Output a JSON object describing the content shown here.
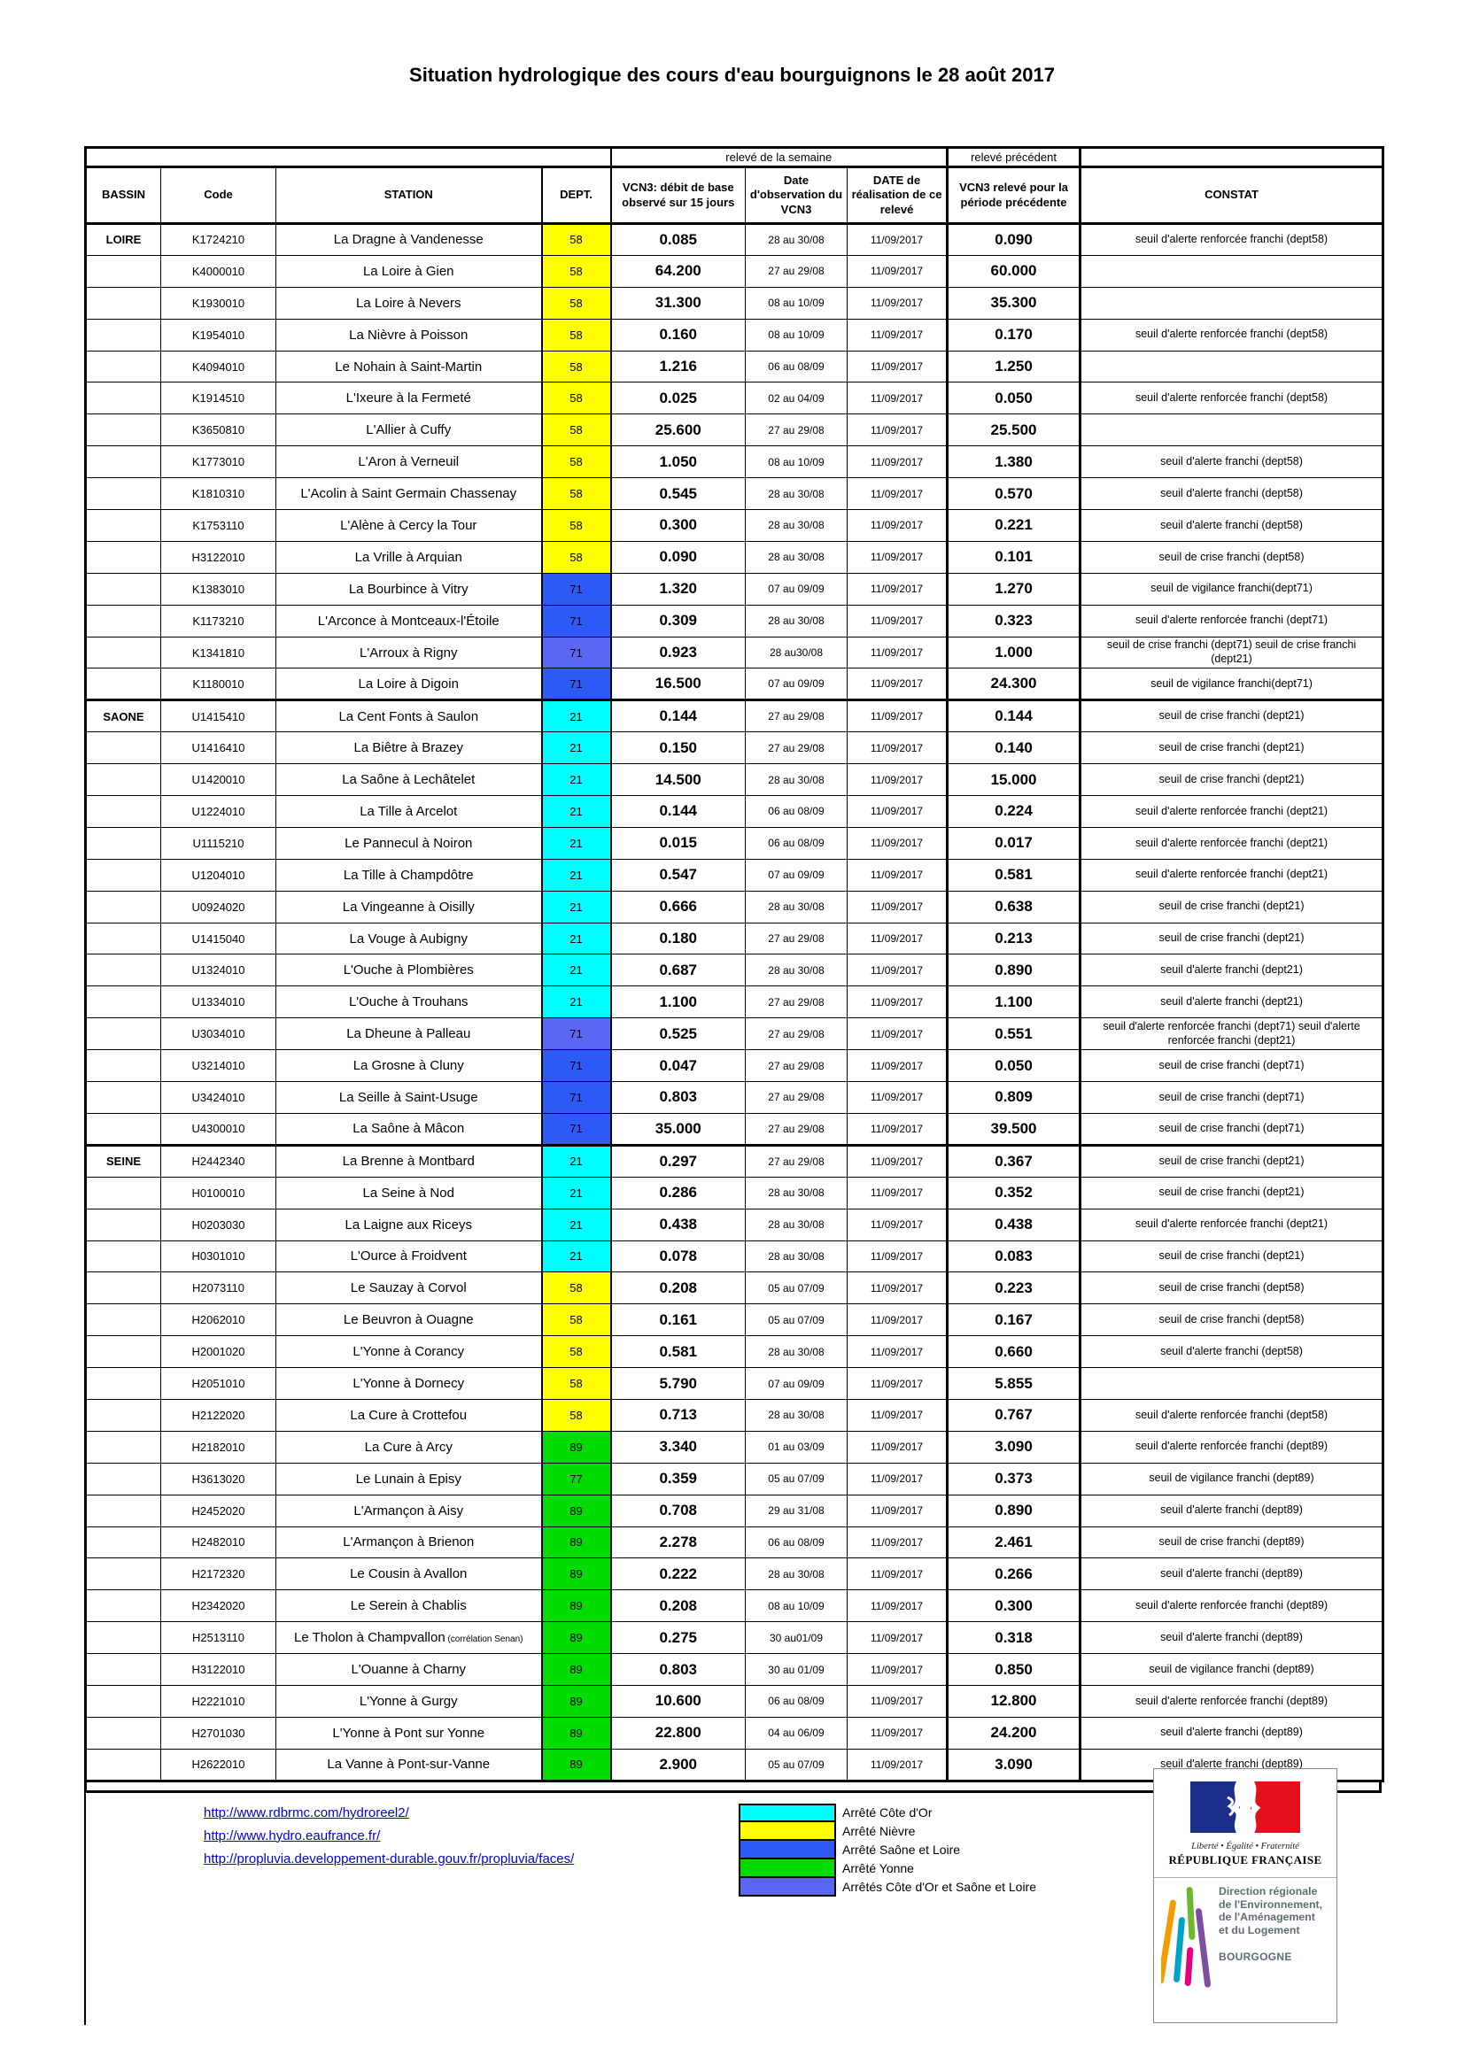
{
  "title": "Situation hydrologique des cours d'eau bourguignons le 28 août 2017",
  "table": {
    "group_week": "relevé de la semaine",
    "group_prev": "relevé précédent",
    "columns": [
      "BASSIN",
      "Code",
      "STATION",
      "DEPT.",
      "VCN3: débit de base observé sur 15 jours",
      "Date d'observation du VCN3",
      "DATE de réalisation de ce relevé",
      "VCN3 relevé pour la période précédente",
      "CONSTAT"
    ],
    "dept_colors": {
      "nievre": "#FFFF00",
      "cote_dor": "#00FFFF",
      "saone_et_loire": "#2E5BF7",
      "cote_dor_et_saone_et_loire": "#5A67F2",
      "yonne": "#00DC00"
    },
    "rows": [
      {
        "bassin": "LOIRE",
        "code": "K1724210",
        "station": "La Dragne à Vandenesse",
        "dept": "58",
        "color": "#FFFF00",
        "vcn3": "0.085",
        "obs": "28 au 30/08",
        "real": "11/09/2017",
        "prev": "0.090",
        "constat": "seuil d'alerte renforcée franchi (dept58)"
      },
      {
        "bassin": "",
        "code": "K4000010",
        "station": "La Loire à Gien",
        "dept": "58",
        "color": "#FFFF00",
        "vcn3": "64.200",
        "obs": "27 au 29/08",
        "real": "11/09/2017",
        "prev": "60.000",
        "constat": ""
      },
      {
        "bassin": "",
        "code": "K1930010",
        "station": "La Loire à Nevers",
        "dept": "58",
        "color": "#FFFF00",
        "vcn3": "31.300",
        "obs": "08 au 10/09",
        "real": "11/09/2017",
        "prev": "35.300",
        "constat": ""
      },
      {
        "bassin": "",
        "code": "K1954010",
        "station": "La Nièvre à Poisson",
        "dept": "58",
        "color": "#FFFF00",
        "vcn3": "0.160",
        "obs": "08 au 10/09",
        "real": "11/09/2017",
        "prev": "0.170",
        "constat": "seuil d'alerte renforcée franchi (dept58)"
      },
      {
        "bassin": "",
        "code": "K4094010",
        "station": "Le Nohain à Saint-Martin",
        "dept": "58",
        "color": "#FFFF00",
        "vcn3": "1.216",
        "obs": "06 au 08/09",
        "real": "11/09/2017",
        "prev": "1.250",
        "constat": ""
      },
      {
        "bassin": "",
        "code": "K1914510",
        "station": "L'Ixeure à la Fermeté",
        "dept": "58",
        "color": "#FFFF00",
        "vcn3": "0.025",
        "obs": "02 au 04/09",
        "real": "11/09/2017",
        "prev": "0.050",
        "constat": "seuil d'alerte renforcée franchi (dept58)"
      },
      {
        "bassin": "",
        "code": "K3650810",
        "station": "L'Allier à Cuffy",
        "dept": "58",
        "color": "#FFFF00",
        "vcn3": "25.600",
        "obs": "27 au 29/08",
        "real": "11/09/2017",
        "prev": "25.500",
        "constat": ""
      },
      {
        "bassin": "",
        "code": "K1773010",
        "station": "L'Aron à Verneuil",
        "dept": "58",
        "color": "#FFFF00",
        "vcn3": "1.050",
        "obs": "08 au 10/09",
        "real": "11/09/2017",
        "prev": "1.380",
        "constat": "seuil d'alerte franchi (dept58)"
      },
      {
        "bassin": "",
        "code": "K1810310",
        "station": "L'Acolin à Saint Germain Chassenay",
        "dept": "58",
        "color": "#FFFF00",
        "vcn3": "0.545",
        "obs": "28 au 30/08",
        "real": "11/09/2017",
        "prev": "0.570",
        "constat": "seuil d'alerte franchi (dept58)"
      },
      {
        "bassin": "",
        "code": "K1753110",
        "station": "L'Alène à Cercy la Tour",
        "dept": "58",
        "color": "#FFFF00",
        "vcn3": "0.300",
        "obs": "28 au 30/08",
        "real": "11/09/2017",
        "prev": "0.221",
        "constat": "seuil d'alerte franchi (dept58)"
      },
      {
        "bassin": "",
        "code": "H3122010",
        "station": "La Vrille à Arquian",
        "dept": "58",
        "color": "#FFFF00",
        "vcn3": "0.090",
        "obs": "28 au 30/08",
        "real": "11/09/2017",
        "prev": "0.101",
        "constat": "seuil de crise franchi (dept58)"
      },
      {
        "bassin": "",
        "code": "K1383010",
        "station": "La Bourbince à Vitry",
        "dept": "71",
        "color": "#2E5BF7",
        "vcn3": "1.320",
        "obs": "07 au 09/09",
        "real": "11/09/2017",
        "prev": "1.270",
        "constat": "seuil de vigilance franchi(dept71)"
      },
      {
        "bassin": "",
        "code": "K1173210",
        "station": "L'Arconce à Montceaux-l'Étoile",
        "dept": "71",
        "color": "#2E5BF7",
        "vcn3": "0.309",
        "obs": "28 au 30/08",
        "real": "11/09/2017",
        "prev": "0.323",
        "constat": "seuil d'alerte renforcée franchi (dept71)"
      },
      {
        "bassin": "",
        "code": "K1341810",
        "station": "L'Arroux à Rigny",
        "dept": "71",
        "color": "#5A67F2",
        "vcn3": "0.923",
        "obs": "28 au30/08",
        "real": "11/09/2017",
        "prev": "1.000",
        "constat": "seuil de crise franchi (dept71)  seuil de crise franchi (dept21)"
      },
      {
        "bassin": "",
        "code": "K1180010",
        "station": "La Loire à Digoin",
        "dept": "71",
        "color": "#2E5BF7",
        "vcn3": "16.500",
        "obs": "07 au 09/09",
        "real": "11/09/2017",
        "prev": "24.300",
        "constat": "seuil de vigilance franchi(dept71)"
      },
      {
        "bassin": "SAONE",
        "code": "U1415410",
        "station": "La Cent Fonts à Saulon",
        "dept": "21",
        "color": "#00FFFF",
        "vcn3": "0.144",
        "obs": "27 au 29/08",
        "real": "11/09/2017",
        "prev": "0.144",
        "constat": "seuil de crise franchi (dept21)"
      },
      {
        "bassin": "",
        "code": "U1416410",
        "station": "La Biêtre à Brazey",
        "dept": "21",
        "color": "#00FFFF",
        "vcn3": "0.150",
        "obs": "27 au 29/08",
        "real": "11/09/2017",
        "prev": "0.140",
        "constat": "seuil de crise franchi (dept21)"
      },
      {
        "bassin": "",
        "code": "U1420010",
        "station": "La Saône à Lechâtelet",
        "dept": "21",
        "color": "#00FFFF",
        "vcn3": "14.500",
        "obs": "28 au 30/08",
        "real": "11/09/2017",
        "prev": "15.000",
        "constat": "seuil de crise franchi (dept21)"
      },
      {
        "bassin": "",
        "code": "U1224010",
        "station": "La Tille à Arcelot",
        "dept": "21",
        "color": "#00FFFF",
        "vcn3": "0.144",
        "obs": "06 au 08/09",
        "real": "11/09/2017",
        "prev": "0.224",
        "constat": "seuil d'alerte renforcée franchi (dept21)"
      },
      {
        "bassin": "",
        "code": "U1115210",
        "station": "Le Pannecul à Noiron",
        "dept": "21",
        "color": "#00FFFF",
        "vcn3": "0.015",
        "obs": "06 au 08/09",
        "real": "11/09/2017",
        "prev": "0.017",
        "constat": "seuil d'alerte renforcée franchi (dept21)"
      },
      {
        "bassin": "",
        "code": "U1204010",
        "station": "La Tille à Champdôtre",
        "dept": "21",
        "color": "#00FFFF",
        "vcn3": "0.547",
        "obs": "07 au 09/09",
        "real": "11/09/2017",
        "prev": "0.581",
        "constat": "seuil d'alerte renforcée franchi (dept21)"
      },
      {
        "bassin": "",
        "code": "U0924020",
        "station": "La Vingeanne à Oisilly",
        "dept": "21",
        "color": "#00FFFF",
        "vcn3": "0.666",
        "obs": "28 au 30/08",
        "real": "11/09/2017",
        "prev": "0.638",
        "constat": "seuil de crise franchi (dept21)"
      },
      {
        "bassin": "",
        "code": "U1415040",
        "station": "La Vouge à Aubigny",
        "dept": "21",
        "color": "#00FFFF",
        "vcn3": "0.180",
        "obs": "27 au 29/08",
        "real": "11/09/2017",
        "prev": "0.213",
        "constat": "seuil de crise franchi (dept21)"
      },
      {
        "bassin": "",
        "code": "U1324010",
        "station": "L'Ouche à Plombières",
        "dept": "21",
        "color": "#00FFFF",
        "vcn3": "0.687",
        "obs": "28 au 30/08",
        "real": "11/09/2017",
        "prev": "0.890",
        "constat": "seuil d'alerte franchi (dept21)"
      },
      {
        "bassin": "",
        "code": "U1334010",
        "station": "L'Ouche à Trouhans",
        "dept": "21",
        "color": "#00FFFF",
        "vcn3": "1.100",
        "obs": "27 au 29/08",
        "real": "11/09/2017",
        "prev": "1.100",
        "constat": "seuil d'alerte franchi (dept21)"
      },
      {
        "bassin": "",
        "code": "U3034010",
        "station": "La Dheune à Palleau",
        "dept": "71",
        "color": "#5A67F2",
        "vcn3": "0.525",
        "obs": "27 au 29/08",
        "real": "11/09/2017",
        "prev": "0.551",
        "constat": "seuil d'alerte renforcée franchi (dept71)  seuil d'alerte renforcée franchi (dept21)"
      },
      {
        "bassin": "",
        "code": "U3214010",
        "station": "La Grosne à Cluny",
        "dept": "71",
        "color": "#2E5BF7",
        "vcn3": "0.047",
        "obs": "27 au 29/08",
        "real": "11/09/2017",
        "prev": "0.050",
        "constat": "seuil de crise franchi (dept71)"
      },
      {
        "bassin": "",
        "code": "U3424010",
        "station": "La Seille à Saint-Usuge",
        "dept": "71",
        "color": "#2E5BF7",
        "vcn3": "0.803",
        "obs": "27 au 29/08",
        "real": "11/09/2017",
        "prev": "0.809",
        "constat": "seuil de crise franchi (dept71)"
      },
      {
        "bassin": "",
        "code": "U4300010",
        "station": "La Saône à Mâcon",
        "dept": "71",
        "color": "#2E5BF7",
        "vcn3": "35.000",
        "obs": "27 au 29/08",
        "real": "11/09/2017",
        "prev": "39.500",
        "constat": "seuil de crise franchi (dept71)"
      },
      {
        "bassin": "SEINE",
        "code": "H2442340",
        "station": "La Brenne à Montbard",
        "dept": "21",
        "color": "#00FFFF",
        "vcn3": "0.297",
        "obs": "27 au 29/08",
        "real": "11/09/2017",
        "prev": "0.367",
        "constat": "seuil de crise franchi (dept21)"
      },
      {
        "bassin": "",
        "code": "H0100010",
        "station": "La Seine à Nod",
        "dept": "21",
        "color": "#00FFFF",
        "vcn3": "0.286",
        "obs": "28 au 30/08",
        "real": "11/09/2017",
        "prev": "0.352",
        "constat": "seuil de crise franchi (dept21)"
      },
      {
        "bassin": "",
        "code": "H0203030",
        "station": "La Laigne aux Riceys",
        "dept": "21",
        "color": "#00FFFF",
        "vcn3": "0.438",
        "obs": "28 au 30/08",
        "real": "11/09/2017",
        "prev": "0.438",
        "constat": "seuil d'alerte renforcée franchi (dept21)"
      },
      {
        "bassin": "",
        "code": "H0301010",
        "station": "L'Ource à Froidvent",
        "dept": "21",
        "color": "#00FFFF",
        "vcn3": "0.078",
        "obs": "28 au 30/08",
        "real": "11/09/2017",
        "prev": "0.083",
        "constat": "seuil de crise franchi (dept21)"
      },
      {
        "bassin": "",
        "code": "H2073110",
        "station": "Le Sauzay à Corvol",
        "dept": "58",
        "color": "#FFFF00",
        "vcn3": "0.208",
        "obs": "05 au 07/09",
        "real": "11/09/2017",
        "prev": "0.223",
        "constat": "seuil de crise franchi (dept58)"
      },
      {
        "bassin": "",
        "code": "H2062010",
        "station": "Le Beuvron à Ouagne",
        "dept": "58",
        "color": "#FFFF00",
        "vcn3": "0.161",
        "obs": "05 au 07/09",
        "real": "11/09/2017",
        "prev": "0.167",
        "constat": "seuil de crise franchi (dept58)"
      },
      {
        "bassin": "",
        "code": "H2001020",
        "station": "L'Yonne à Corancy",
        "dept": "58",
        "color": "#FFFF00",
        "vcn3": "0.581",
        "obs": "28 au 30/08",
        "real": "11/09/2017",
        "prev": "0.660",
        "constat": "seuil d'alerte franchi (dept58)"
      },
      {
        "bassin": "",
        "code": "H2051010",
        "station": "L'Yonne à Dornecy",
        "dept": "58",
        "color": "#FFFF00",
        "vcn3": "5.790",
        "obs": "07 au 09/09",
        "real": "11/09/2017",
        "prev": "5.855",
        "constat": ""
      },
      {
        "bassin": "",
        "code": "H2122020",
        "station": "La Cure à Crottefou",
        "dept": "58",
        "color": "#FFFF00",
        "vcn3": "0.713",
        "obs": "28 au 30/08",
        "real": "11/09/2017",
        "prev": "0.767",
        "constat": "seuil d'alerte renforcée franchi (dept58)"
      },
      {
        "bassin": "",
        "code": "H2182010",
        "station": "La Cure à Arcy",
        "dept": "89",
        "color": "#00DC00",
        "vcn3": "3.340",
        "obs": "01 au 03/09",
        "real": "11/09/2017",
        "prev": "3.090",
        "constat": "seuil d'alerte renforcée franchi (dept89)"
      },
      {
        "bassin": "",
        "code": "H3613020",
        "station": "Le Lunain à Episy",
        "dept": "77",
        "color": "#00DC00",
        "vcn3": "0.359",
        "obs": "05 au 07/09",
        "real": "11/09/2017",
        "prev": "0.373",
        "constat": "seuil de vigilance franchi (dept89)"
      },
      {
        "bassin": "",
        "code": "H2452020",
        "station": "L'Armançon à Aisy",
        "dept": "89",
        "color": "#00DC00",
        "vcn3": "0.708",
        "obs": "29 au 31/08",
        "real": "11/09/2017",
        "prev": "0.890",
        "constat": "seuil d'alerte franchi (dept89)"
      },
      {
        "bassin": "",
        "code": "H2482010",
        "station": "L'Armançon à Brienon",
        "dept": "89",
        "color": "#00DC00",
        "vcn3": "2.278",
        "obs": "06 au 08/09",
        "real": "11/09/2017",
        "prev": "2.461",
        "constat": "seuil de crise franchi (dept89)"
      },
      {
        "bassin": "",
        "code": "H2172320",
        "station": "Le Cousin à Avallon",
        "dept": "89",
        "color": "#00DC00",
        "vcn3": "0.222",
        "obs": "28 au 30/08",
        "real": "11/09/2017",
        "prev": "0.266",
        "constat": "seuil d'alerte franchi (dept89)"
      },
      {
        "bassin": "",
        "code": "H2342020",
        "station": "Le Serein à Chablis",
        "dept": "89",
        "color": "#00DC00",
        "vcn3": "0.208",
        "obs": "08 au 10/09",
        "real": "11/09/2017",
        "prev": "0.300",
        "constat": "seuil d'alerte renforcée franchi (dept89)"
      },
      {
        "bassin": "",
        "code": "H2513110",
        "station": "Le Tholon à Champvallon",
        "note": "(corrélation Senan)",
        "dept": "89",
        "color": "#00DC00",
        "vcn3": "0.275",
        "obs": "30 au01/09",
        "real": "11/09/2017",
        "prev": "0.318",
        "constat": "seuil d'alerte franchi (dept89)"
      },
      {
        "bassin": "",
        "code": "H3122010",
        "station": "L'Ouanne à Charny",
        "dept": "89",
        "color": "#00DC00",
        "vcn3": "0.803",
        "obs": "30 au 01/09",
        "real": "11/09/2017",
        "prev": "0.850",
        "constat": "seuil de vigilance franchi (dept89)"
      },
      {
        "bassin": "",
        "code": "H2221010",
        "station": "L'Yonne à Gurgy",
        "dept": "89",
        "color": "#00DC00",
        "vcn3": "10.600",
        "obs": "06 au 08/09",
        "real": "11/09/2017",
        "prev": "12.800",
        "constat": "seuil d'alerte renforcée franchi (dept89)"
      },
      {
        "bassin": "",
        "code": "H2701030",
        "station": "L'Yonne à Pont sur Yonne",
        "dept": "89",
        "color": "#00DC00",
        "vcn3": "22.800",
        "obs": "04 au 06/09",
        "real": "11/09/2017",
        "prev": "24.200",
        "constat": "seuil d'alerte franchi (dept89)"
      },
      {
        "bassin": "",
        "code": "H2622010",
        "station": "La Vanne à Pont-sur-Vanne",
        "dept": "89",
        "color": "#00DC00",
        "vcn3": "2.900",
        "obs": "05 au 07/09",
        "real": "11/09/2017",
        "prev": "3.090",
        "constat": "seuil d'alerte franchi (dept89)"
      }
    ]
  },
  "footer": {
    "links": [
      {
        "text": "http://www.rdbrmc.com/hydroreel2/"
      },
      {
        "text": "http://www.hydro.eaufrance.fr/"
      },
      {
        "text": "http://propluvia.developpement-durable.gouv.fr/propluvia/faces/"
      }
    ],
    "legend": [
      {
        "color": "#00FFFF",
        "label": "Arrêté Côte d'Or"
      },
      {
        "color": "#FFFF00",
        "label": "Arrêté Nièvre"
      },
      {
        "color": "#2E5BF7",
        "label": "Arrêté Saône et Loire"
      },
      {
        "color": "#00DC00",
        "label": "Arrêté Yonne"
      },
      {
        "color": "#5A67F2",
        "label": "Arrêtés Côte d'Or et Saône et Loire"
      }
    ],
    "logos": {
      "rf_motto": "Liberté • Égalité • Fraternité",
      "rf_name": "RÉPUBLIQUE FRANÇAISE",
      "dreal_lines": [
        "Direction régionale",
        "de l'Environnement,",
        "de l'Aménagement",
        "et du Logement"
      ],
      "dreal_region": "BOURGOGNE"
    }
  }
}
